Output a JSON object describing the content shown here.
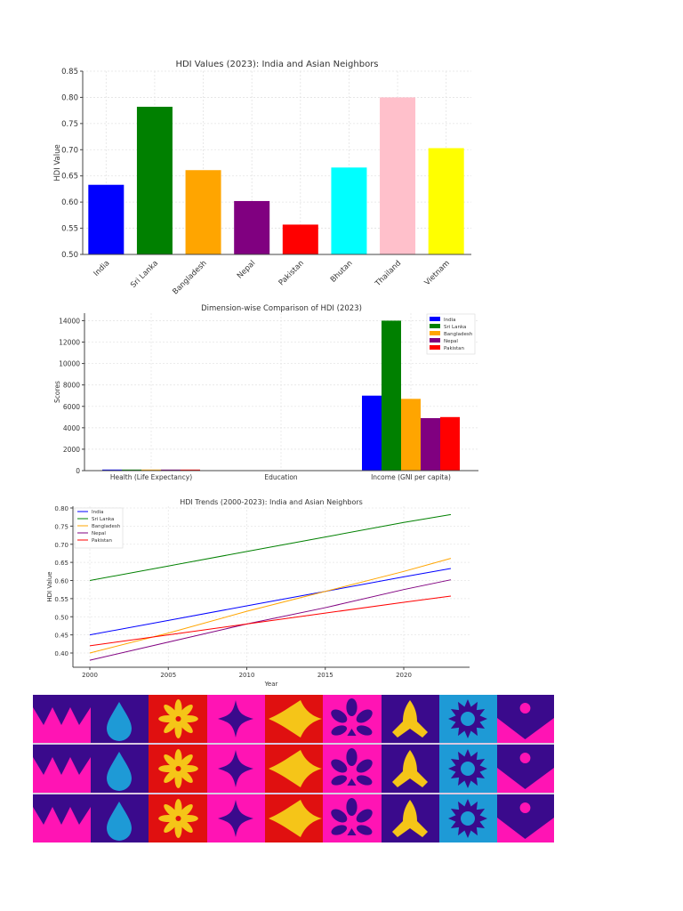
{
  "chart_data": [
    {
      "type": "bar",
      "title": "HDI Values (2023): India and Asian Neighbors",
      "xlabel": "",
      "ylabel": "HDI Value",
      "ylim": [
        0.5,
        0.85
      ],
      "yticks": [
        "0.50",
        "0.55",
        "0.60",
        "0.65",
        "0.70",
        "0.75",
        "0.80",
        "0.85"
      ],
      "grid": true,
      "categories": [
        "India",
        "Sri Lanka",
        "Bangladesh",
        "Nepal",
        "Pakistan",
        "Bhutan",
        "Thailand",
        "Vietnam"
      ],
      "values": [
        0.633,
        0.782,
        0.661,
        0.602,
        0.557,
        0.666,
        0.8,
        0.703
      ],
      "colors": [
        "#0000ff",
        "#008000",
        "#ffa500",
        "#800080",
        "#ff0000",
        "#00ffff",
        "#ffc0cb",
        "#ffff00"
      ]
    },
    {
      "type": "bar",
      "title": "Dimension-wise Comparison of HDI (2023)",
      "xlabel": "",
      "ylabel": "Scores",
      "ylim": [
        0,
        14700
      ],
      "yticks": [
        "0",
        "2000",
        "4000",
        "6000",
        "8000",
        "10000",
        "12000",
        "14000"
      ],
      "grid": true,
      "legend_position": "upper right",
      "categories": [
        "Health (Life Expectancy)",
        "Education",
        "Income (GNI per capita)"
      ],
      "series": [
        {
          "name": "India",
          "color": "#0000ff",
          "values": [
            67.7,
            0,
            7000
          ]
        },
        {
          "name": "Sri Lanka",
          "color": "#008000",
          "values": [
            76.6,
            0,
            14000
          ]
        },
        {
          "name": "Bangladesh",
          "color": "#ffa500",
          "values": [
            72.4,
            0,
            6700
          ]
        },
        {
          "name": "Nepal",
          "color": "#800080",
          "values": [
            70.5,
            0,
            4900
          ]
        },
        {
          "name": "Pakistan",
          "color": "#ff0000",
          "values": [
            66.4,
            0,
            5000
          ]
        }
      ]
    },
    {
      "type": "line",
      "title": "HDI Trends (2000-2023): India and Asian Neighbors",
      "xlabel": "Year",
      "ylabel": "HDI Value",
      "xlim": [
        1999,
        2024
      ],
      "ylim": [
        0.36,
        0.8
      ],
      "xticks": [
        "2000",
        "2005",
        "2010",
        "2015",
        "2020"
      ],
      "yticks": [
        "0.40",
        "0.45",
        "0.50",
        "0.55",
        "0.60",
        "0.65",
        "0.70",
        "0.75",
        "0.80"
      ],
      "grid": true,
      "legend_position": "upper left",
      "x": [
        2000,
        2005,
        2010,
        2015,
        2020,
        2023
      ],
      "series": [
        {
          "name": "India",
          "color": "#0000ff",
          "values": [
            0.45,
            0.49,
            0.53,
            0.57,
            0.61,
            0.633
          ]
        },
        {
          "name": "Sri Lanka",
          "color": "#008000",
          "values": [
            0.6,
            0.64,
            0.68,
            0.72,
            0.76,
            0.782
          ]
        },
        {
          "name": "Bangladesh",
          "color": "#ffa500",
          "values": [
            0.4,
            0.455,
            0.515,
            0.57,
            0.625,
            0.661
          ]
        },
        {
          "name": "Nepal",
          "color": "#800080",
          "values": [
            0.38,
            0.43,
            0.48,
            0.525,
            0.575,
            0.602
          ]
        },
        {
          "name": "Pakistan",
          "color": "#ff0000",
          "values": [
            0.42,
            0.45,
            0.48,
            0.51,
            0.54,
            0.557
          ]
        }
      ]
    }
  ],
  "decorative_band": {
    "rows": 3,
    "tiles": [
      {
        "motif": "crown-icon",
        "bg": "#ff14b4",
        "fg": "#3a0a8c"
      },
      {
        "motif": "water-drop-icon",
        "bg": "#3a0a8c",
        "fg": "#1e9ad6"
      },
      {
        "motif": "flower-burst-icon",
        "bg": "#e01010",
        "fg": "#f5c518"
      },
      {
        "motif": "four-point-star-icon",
        "bg": "#ff14b4",
        "fg": "#3a0a8c"
      },
      {
        "motif": "diamond-icon",
        "bg": "#e01010",
        "fg": "#f5c518"
      },
      {
        "motif": "leaf-cluster-icon",
        "bg": "#ff14b4",
        "fg": "#3a0a8c"
      },
      {
        "motif": "praying-hands-icon",
        "bg": "#3a0a8c",
        "fg": "#f5c518"
      },
      {
        "motif": "sun-icon",
        "bg": "#1e9ad6",
        "fg": "#3a0a8c"
      },
      {
        "motif": "chevron-dot-icon",
        "bg": "#ff14b4",
        "fg": "#3a0a8c"
      }
    ]
  }
}
